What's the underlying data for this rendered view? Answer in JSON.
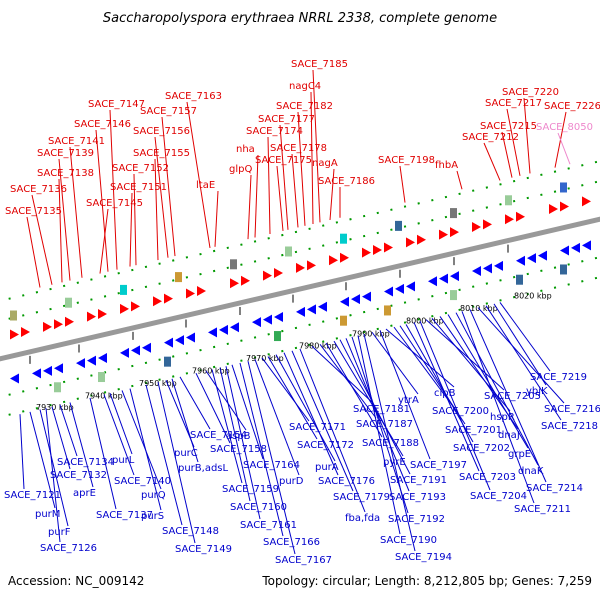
{
  "title": "Saccharopolyspora erythraea NRRL 2338, complete genome",
  "footer": {
    "accession": "Accession: NC_009142",
    "topology": "Topology: circular; Length: 8,212,805 bp; Genes: 7,259"
  },
  "colors": {
    "top_label": "#e00000",
    "bottom_label": "#0000cc",
    "pink_label": "#ee88cc",
    "backbone": "#999999",
    "tick": "#009900",
    "arrow_red": "#ff0000",
    "arrow_blue": "#0000ff"
  },
  "kbp_ticks": [
    "7930 kbp",
    "7940 kbp",
    "7950 kbp",
    "7960 kbp",
    "7970 kbp",
    "7980 kbp",
    "7990 kbp",
    "8000 kbp",
    "8010 kbp",
    "8020 kbp"
  ],
  "top_labels": [
    {
      "text": "SACE_7135",
      "color": "red"
    },
    {
      "text": "SACE_7136",
      "color": "red"
    },
    {
      "text": "SACE_7138",
      "color": "red"
    },
    {
      "text": "SACE_7139",
      "color": "red"
    },
    {
      "text": "SACE_7141",
      "color": "red"
    },
    {
      "text": "SACE_7145",
      "color": "red"
    },
    {
      "text": "SACE_7146",
      "color": "red"
    },
    {
      "text": "SACE_7147",
      "color": "red"
    },
    {
      "text": "SACE_7151",
      "color": "red"
    },
    {
      "text": "SACE_7152",
      "color": "red"
    },
    {
      "text": "SACE_7155",
      "color": "red"
    },
    {
      "text": "SACE_7156",
      "color": "red"
    },
    {
      "text": "SACE_7157",
      "color": "red"
    },
    {
      "text": "SACE_7163",
      "color": "red"
    },
    {
      "text": "ltaE",
      "color": "red"
    },
    {
      "text": "glpQ",
      "color": "red"
    },
    {
      "text": "nha",
      "color": "red"
    },
    {
      "text": "SACE_7174",
      "color": "red"
    },
    {
      "text": "SACE_7175",
      "color": "red"
    },
    {
      "text": "SACE_7177",
      "color": "red"
    },
    {
      "text": "SACE_7178",
      "color": "red"
    },
    {
      "text": "SACE_7182",
      "color": "red"
    },
    {
      "text": "nagC4",
      "color": "red"
    },
    {
      "text": "SACE_7185",
      "color": "red"
    },
    {
      "text": "nagA",
      "color": "red"
    },
    {
      "text": "SACE_7186",
      "color": "red"
    },
    {
      "text": "SACE_7198",
      "color": "red"
    },
    {
      "text": "fhbA",
      "color": "red"
    },
    {
      "text": "SACE_7212",
      "color": "red"
    },
    {
      "text": "SACE_7215",
      "color": "red"
    },
    {
      "text": "SACE_7217",
      "color": "red"
    },
    {
      "text": "SACE_7220",
      "color": "red"
    },
    {
      "text": "SACE_7226",
      "color": "red"
    },
    {
      "text": "SACE_8050",
      "color": "pink"
    }
  ],
  "bottom_labels": [
    {
      "text": "SACE_7121"
    },
    {
      "text": "purM"
    },
    {
      "text": "purF"
    },
    {
      "text": "SACE_7126"
    },
    {
      "text": "SACE_7132"
    },
    {
      "text": "SACE_7134"
    },
    {
      "text": "aprE"
    },
    {
      "text": "SACE_7137"
    },
    {
      "text": "SACE_7140"
    },
    {
      "text": "purL"
    },
    {
      "text": "purQ"
    },
    {
      "text": "purS"
    },
    {
      "text": "SACE_7148"
    },
    {
      "text": "SACE_7149"
    },
    {
      "text": "purC"
    },
    {
      "text": "purB,adsL"
    },
    {
      "text": "SACE_7154"
    },
    {
      "text": "SACE_7158"
    },
    {
      "text": "aspB"
    },
    {
      "text": "SACE_7159"
    },
    {
      "text": "SACE_7160"
    },
    {
      "text": "SACE_7161"
    },
    {
      "text": "SACE_7164"
    },
    {
      "text": "SACE_7166"
    },
    {
      "text": "SACE_7167"
    },
    {
      "text": "purD"
    },
    {
      "text": "SACE_7171"
    },
    {
      "text": "SACE_7172"
    },
    {
      "text": "purA"
    },
    {
      "text": "SACE_7176"
    },
    {
      "text": "SACE_7179"
    },
    {
      "text": "fba,fda"
    },
    {
      "text": "SACE_7181"
    },
    {
      "text": "SACE_7187"
    },
    {
      "text": "SACE_7188"
    },
    {
      "text": "pyrE"
    },
    {
      "text": "SACE_7191"
    },
    {
      "text": "SACE_7193"
    },
    {
      "text": "SACE_7192"
    },
    {
      "text": "SACE_7190"
    },
    {
      "text": "SACE_7194"
    },
    {
      "text": "ytrA"
    },
    {
      "text": "SACE_7197"
    },
    {
      "text": "clpB"
    },
    {
      "text": "SACE_7200"
    },
    {
      "text": "SACE_7201"
    },
    {
      "text": "SACE_7202"
    },
    {
      "text": "SACE_7203"
    },
    {
      "text": "SACE_7204"
    },
    {
      "text": "SACE_7205"
    },
    {
      "text": "hspR"
    },
    {
      "text": "dnaJ"
    },
    {
      "text": "grpE"
    },
    {
      "text": "dnaK"
    },
    {
      "text": "SACE_7211"
    },
    {
      "text": "SACE_7214"
    },
    {
      "text": "SACE_7216"
    },
    {
      "text": "SACE_7218"
    },
    {
      "text": "ybjK"
    },
    {
      "text": "SACE_7219"
    }
  ]
}
